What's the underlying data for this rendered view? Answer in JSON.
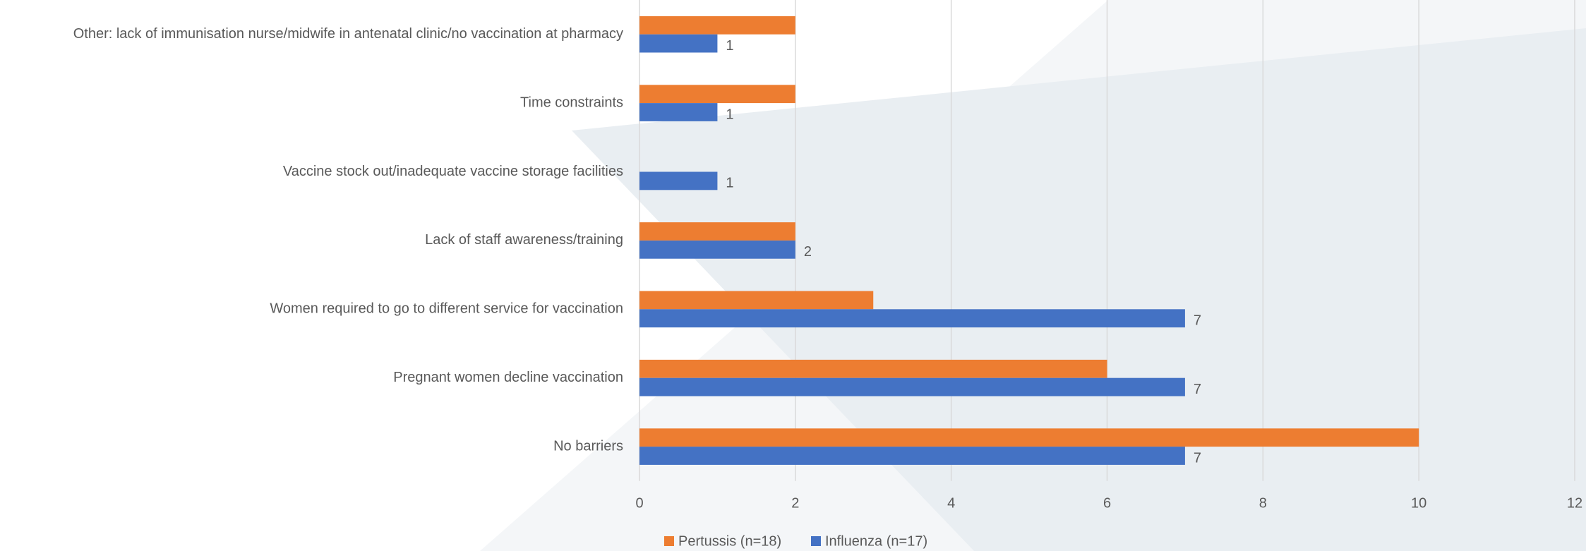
{
  "chart_data": {
    "type": "hbar",
    "categories": [
      "Other: lack of immunisation nurse/midwife in antenatal clinic/no vaccination at pharmacy",
      "Time constraints",
      "Vaccine stock out/inadequate vaccine storage facilities",
      "Lack of staff awareness/training",
      "Women required to go to different service for vaccination",
      "Pregnant women decline vaccination",
      "No barriers"
    ],
    "series": [
      {
        "name": "Pertussis (n=18)",
        "color": "#ed7d31",
        "values": [
          2,
          2,
          null,
          2,
          3,
          6,
          10
        ],
        "data_labels": false
      },
      {
        "name": "Influenza (n=17)",
        "color": "#4472c4",
        "values": [
          1,
          1,
          1,
          2,
          7,
          7,
          7
        ],
        "data_labels": true
      }
    ],
    "xlim": [
      0,
      12
    ],
    "xticks": [
      0,
      2,
      4,
      6,
      8,
      10,
      12
    ],
    "grid": true,
    "legend": "bottom"
  }
}
